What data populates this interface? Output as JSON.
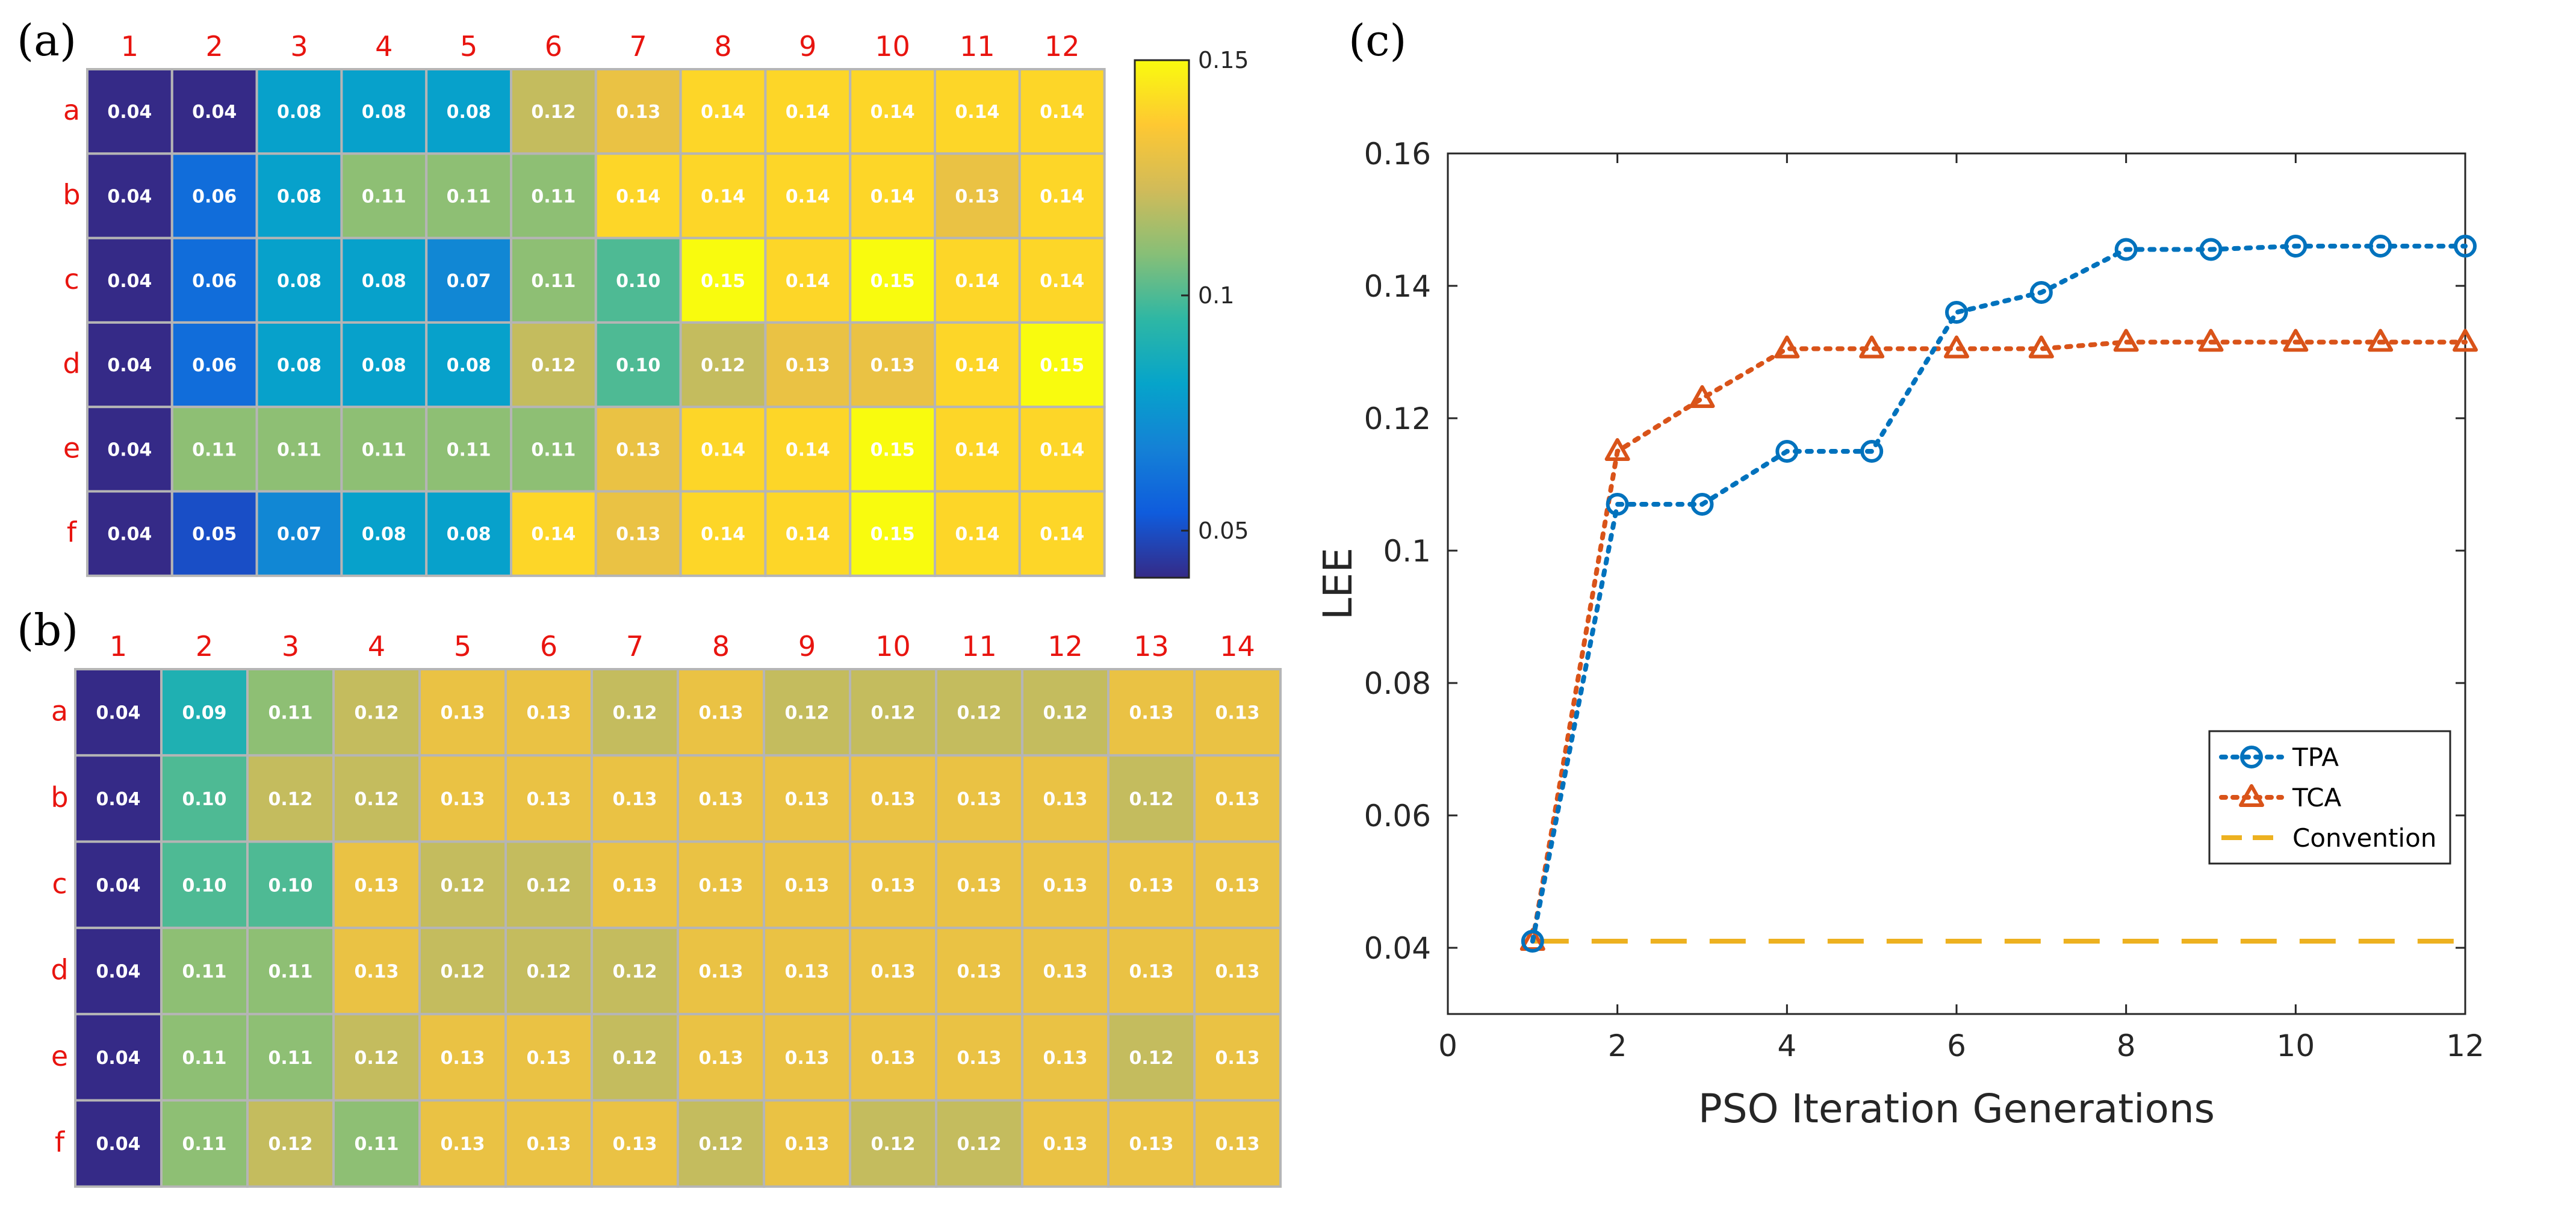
{
  "panel_labels": {
    "a": "(a)",
    "b": "(b)",
    "c": "(c)"
  },
  "colorbar": {
    "min": 0.04,
    "max": 0.15,
    "ticks": [
      "0.15",
      "0.1",
      "0.05"
    ],
    "tick_values": [
      0.15,
      0.1,
      0.05
    ]
  },
  "colors": {
    "tpa": "#0072BD",
    "tca": "#D95319",
    "convention": "#EDB120",
    "grid_border": "#b5b5b5",
    "header_red": "#e8140f"
  },
  "chart_data": [
    {
      "type": "heatmap",
      "panel": "(a)",
      "x_labels": [
        "1",
        "2",
        "3",
        "4",
        "5",
        "6",
        "7",
        "8",
        "9",
        "10",
        "11",
        "12"
      ],
      "y_labels": [
        "a",
        "b",
        "c",
        "d",
        "e",
        "f"
      ],
      "values": [
        [
          "0.04",
          "0.04",
          "0.08",
          "0.08",
          "0.08",
          "0.12",
          "0.13",
          "0.14",
          "0.14",
          "0.14",
          "0.14",
          "0.14"
        ],
        [
          "0.04",
          "0.06",
          "0.08",
          "0.11",
          "0.11",
          "0.11",
          "0.14",
          "0.14",
          "0.14",
          "0.14",
          "0.13",
          "0.14"
        ],
        [
          "0.04",
          "0.06",
          "0.08",
          "0.08",
          "0.07",
          "0.11",
          "0.10",
          "0.15",
          "0.14",
          "0.15",
          "0.14",
          "0.14"
        ],
        [
          "0.04",
          "0.06",
          "0.08",
          "0.08",
          "0.08",
          "0.12",
          "0.10",
          "0.12",
          "0.13",
          "0.13",
          "0.14",
          "0.15"
        ],
        [
          "0.04",
          "0.11",
          "0.11",
          "0.11",
          "0.11",
          "0.11",
          "0.13",
          "0.14",
          "0.14",
          "0.15",
          "0.14",
          "0.14"
        ],
        [
          "0.04",
          "0.05",
          "0.07",
          "0.08",
          "0.08",
          "0.14",
          "0.13",
          "0.14",
          "0.14",
          "0.15",
          "0.14",
          "0.14"
        ]
      ]
    },
    {
      "type": "heatmap",
      "panel": "(b)",
      "x_labels": [
        "1",
        "2",
        "3",
        "4",
        "5",
        "6",
        "7",
        "8",
        "9",
        "10",
        "11",
        "12",
        "13",
        "14"
      ],
      "y_labels": [
        "a",
        "b",
        "c",
        "d",
        "e",
        "f"
      ],
      "values": [
        [
          "0.04",
          "0.09",
          "0.11",
          "0.12",
          "0.13",
          "0.13",
          "0.12",
          "0.13",
          "0.12",
          "0.12",
          "0.12",
          "0.12",
          "0.13",
          "0.13"
        ],
        [
          "0.04",
          "0.10",
          "0.12",
          "0.12",
          "0.13",
          "0.13",
          "0.13",
          "0.13",
          "0.13",
          "0.13",
          "0.13",
          "0.13",
          "0.12",
          "0.13"
        ],
        [
          "0.04",
          "0.10",
          "0.10",
          "0.13",
          "0.12",
          "0.12",
          "0.13",
          "0.13",
          "0.13",
          "0.13",
          "0.13",
          "0.13",
          "0.13",
          "0.13"
        ],
        [
          "0.04",
          "0.11",
          "0.11",
          "0.13",
          "0.12",
          "0.12",
          "0.12",
          "0.13",
          "0.13",
          "0.13",
          "0.13",
          "0.13",
          "0.13",
          "0.13"
        ],
        [
          "0.04",
          "0.11",
          "0.11",
          "0.12",
          "0.13",
          "0.13",
          "0.12",
          "0.13",
          "0.13",
          "0.13",
          "0.13",
          "0.13",
          "0.12",
          "0.13"
        ],
        [
          "0.04",
          "0.11",
          "0.12",
          "0.11",
          "0.13",
          "0.13",
          "0.13",
          "0.12",
          "0.13",
          "0.12",
          "0.12",
          "0.13",
          "0.13",
          "0.13"
        ]
      ]
    },
    {
      "type": "line",
      "panel": "(c)",
      "xlabel": "PSO Iteration Generations",
      "ylabel": "LEE",
      "xlim": [
        0,
        12
      ],
      "ylim": [
        0.03,
        0.16
      ],
      "xticks": [
        "0",
        "2",
        "4",
        "6",
        "8",
        "10",
        "12"
      ],
      "yticks": [
        "0.04",
        "0.06",
        "0.08",
        "0.1",
        "0.12",
        "0.14",
        "0.16"
      ],
      "legend_position": "center-right",
      "series": [
        {
          "name": "TPA",
          "marker": "circle",
          "style": "dotted",
          "x": [
            1,
            2,
            3,
            4,
            5,
            6,
            7,
            8,
            9,
            10,
            11,
            12
          ],
          "y": [
            0.041,
            0.107,
            0.107,
            0.115,
            0.115,
            0.136,
            0.139,
            0.1455,
            0.1455,
            0.146,
            0.146,
            0.146
          ]
        },
        {
          "name": "TCA",
          "marker": "triangle",
          "style": "dotted",
          "x": [
            1,
            2,
            3,
            4,
            5,
            6,
            7,
            8,
            9,
            10,
            11,
            12
          ],
          "y": [
            0.041,
            0.115,
            0.123,
            0.1305,
            0.1305,
            0.1305,
            0.1305,
            0.1315,
            0.1315,
            0.1315,
            0.1315,
            0.1315
          ]
        },
        {
          "name": "Convention",
          "marker": "none",
          "style": "dashed",
          "x": [
            1,
            12
          ],
          "y": [
            0.041,
            0.041
          ]
        }
      ]
    }
  ]
}
